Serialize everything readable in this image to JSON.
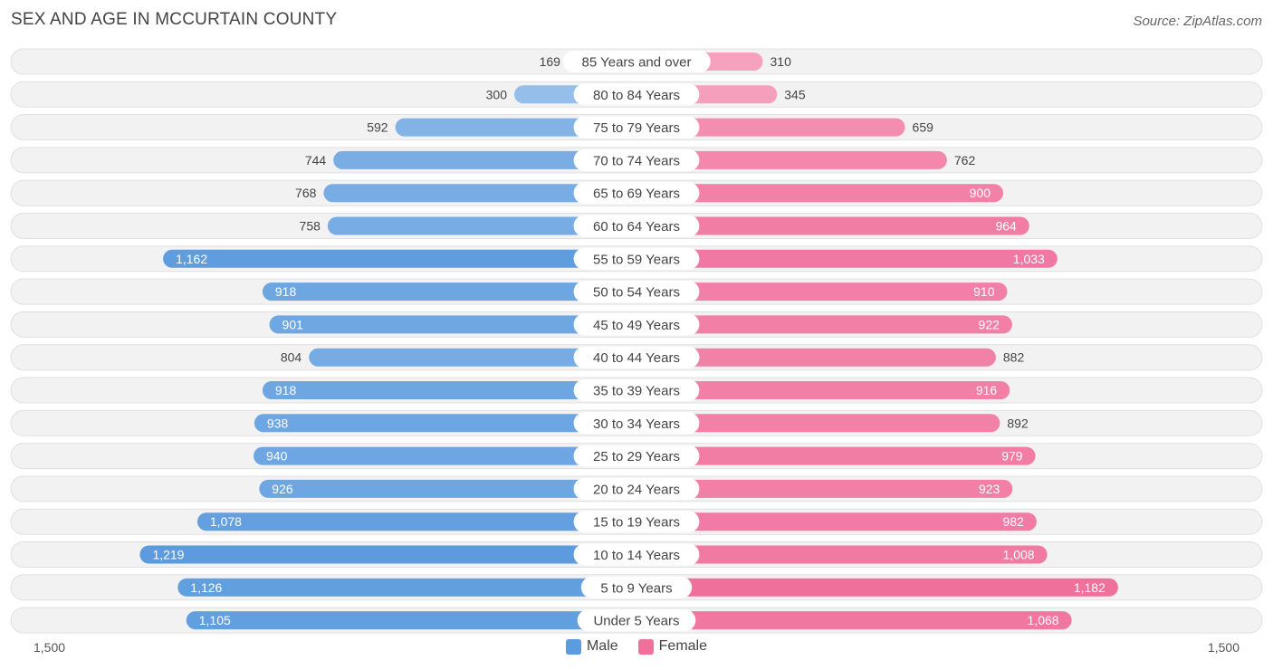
{
  "title": "SEX AND AGE IN MCCURTAIN COUNTY",
  "source": "Source: ZipAtlas.com",
  "colors": {
    "male_dark": "#5b9bde",
    "male_light": "#a9c9ee",
    "female_dark": "#f0709c",
    "female_light": "#f8b3ca",
    "row_bg": "#f2f2f2",
    "row_border": "#e0e0e0"
  },
  "chart_data": {
    "type": "bar",
    "orientation": "horizontal-diverging",
    "title": "SEX AND AGE IN MCCURTAIN COUNTY",
    "axis_min_label": "1,500",
    "axis_max_label": "1,500",
    "xlim": [
      -1500,
      1500
    ],
    "categories": [
      "85 Years and over",
      "80 to 84 Years",
      "75 to 79 Years",
      "70 to 74 Years",
      "65 to 69 Years",
      "60 to 64 Years",
      "55 to 59 Years",
      "50 to 54 Years",
      "45 to 49 Years",
      "40 to 44 Years",
      "35 to 39 Years",
      "30 to 34 Years",
      "25 to 29 Years",
      "20 to 24 Years",
      "15 to 19 Years",
      "10 to 14 Years",
      "5 to 9 Years",
      "Under 5 Years"
    ],
    "series": [
      {
        "name": "Male",
        "values": [
          169,
          300,
          592,
          744,
          768,
          758,
          1162,
          918,
          901,
          804,
          918,
          938,
          940,
          926,
          1078,
          1219,
          1126,
          1105
        ]
      },
      {
        "name": "Female",
        "values": [
          310,
          345,
          659,
          762,
          900,
          964,
          1033,
          910,
          922,
          882,
          916,
          892,
          979,
          923,
          982,
          1008,
          1182,
          1068
        ]
      }
    ],
    "legend": [
      "Male",
      "Female"
    ],
    "legend_position": "bottom-center"
  }
}
